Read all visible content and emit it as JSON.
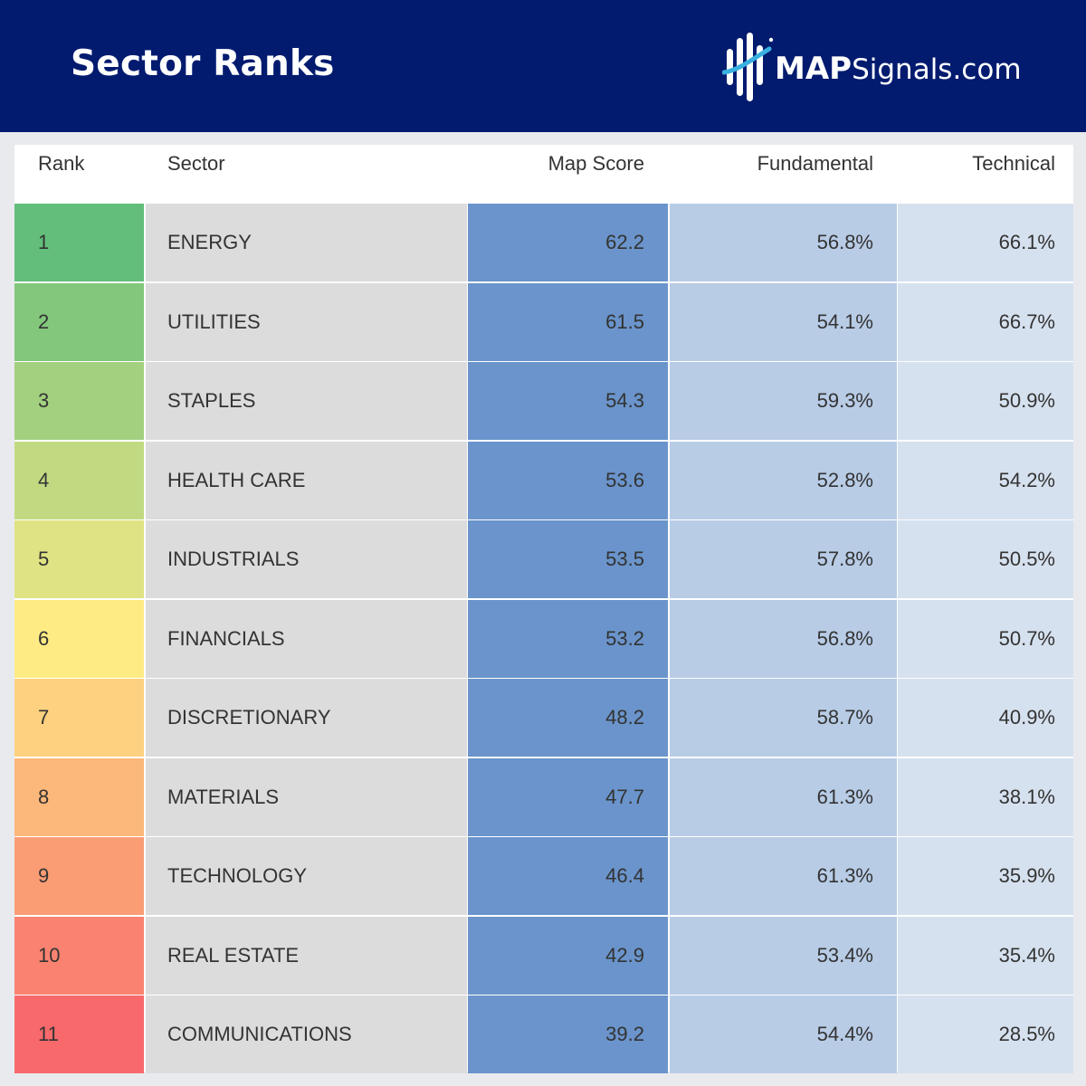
{
  "header": {
    "title": "Sector Ranks",
    "logo_bold": "MAP",
    "logo_rest": "Signals.com",
    "background": "#021b6f"
  },
  "chart_data": {
    "type": "table",
    "columns": [
      "Rank",
      "Sector",
      "Map Score",
      "Fundamental",
      "Technical"
    ],
    "rows": [
      {
        "rank": "1",
        "sector": "ENERGY",
        "map_score": "62.2",
        "fundamental": "56.8%",
        "technical": "66.1%",
        "rank_color": "#63be7b"
      },
      {
        "rank": "2",
        "sector": "UTILITIES",
        "map_score": "61.5",
        "fundamental": "54.1%",
        "technical": "66.7%",
        "rank_color": "#82c77c"
      },
      {
        "rank": "3",
        "sector": "STAPLES",
        "map_score": "54.3",
        "fundamental": "59.3%",
        "technical": "50.9%",
        "rank_color": "#a2d07f"
      },
      {
        "rank": "4",
        "sector": "HEALTH CARE",
        "map_score": "53.6",
        "fundamental": "52.8%",
        "technical": "54.2%",
        "rank_color": "#c1da81"
      },
      {
        "rank": "5",
        "sector": "INDUSTRIALS",
        "map_score": "53.5",
        "fundamental": "57.8%",
        "technical": "50.5%",
        "rank_color": "#e0e383"
      },
      {
        "rank": "6",
        "sector": "FINANCIALS",
        "map_score": "53.2",
        "fundamental": "56.8%",
        "technical": "50.7%",
        "rank_color": "#ffeb84"
      },
      {
        "rank": "7",
        "sector": "DISCRETIONARY",
        "map_score": "48.2",
        "fundamental": "58.7%",
        "technical": "40.9%",
        "rank_color": "#fdd17f"
      },
      {
        "rank": "8",
        "sector": "MATERIALS",
        "map_score": "47.7",
        "fundamental": "61.3%",
        "technical": "38.1%",
        "rank_color": "#fcb77a"
      },
      {
        "rank": "9",
        "sector": "TECHNOLOGY",
        "map_score": "46.4",
        "fundamental": "61.3%",
        "technical": "35.9%",
        "rank_color": "#fa9d75"
      },
      {
        "rank": "10",
        "sector": "REAL ESTATE",
        "map_score": "42.9",
        "fundamental": "53.4%",
        "technical": "35.4%",
        "rank_color": "#f98370"
      },
      {
        "rank": "11",
        "sector": "COMMUNICATIONS",
        "map_score": "39.2",
        "fundamental": "54.4%",
        "technical": "28.5%",
        "rank_color": "#f8696b"
      }
    ],
    "column_colors": {
      "sector": "#dcdcdc",
      "map_score": "#6a94cb",
      "fundamental": "#b8cce6",
      "technical": "#d6e1ef"
    }
  }
}
